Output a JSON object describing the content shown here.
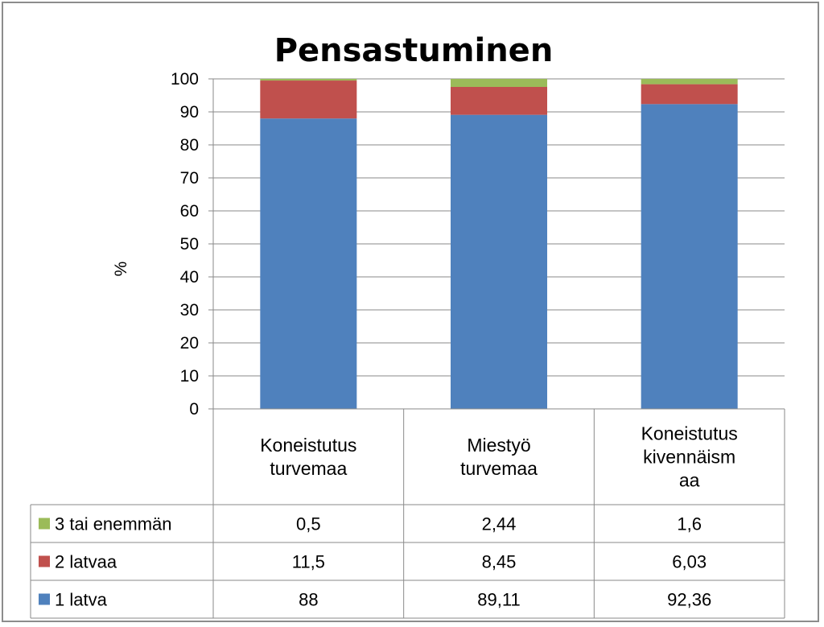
{
  "chart_data": {
    "type": "bar",
    "stacked": true,
    "title": "Pensastuminen",
    "xlabel": "",
    "ylabel": "%",
    "ylim": [
      0,
      100
    ],
    "yticks": [
      "0",
      "10",
      "20",
      "30",
      "40",
      "50",
      "60",
      "70",
      "80",
      "90",
      "100"
    ],
    "grid": true,
    "categories": [
      [
        "Koneistutus",
        "turvemaa"
      ],
      [
        "Miestyö",
        "turvemaa"
      ],
      [
        "Koneistutus",
        "kivennäism",
        "aa"
      ]
    ],
    "series": [
      {
        "name": "1 latva",
        "color": "#4f81bd",
        "values": [
          88,
          89.11,
          92.36
        ],
        "labels": [
          "88",
          "89,11",
          "92,36"
        ]
      },
      {
        "name": "2 latvaa",
        "color": "#c0504d",
        "values": [
          11.5,
          8.45,
          6.03
        ],
        "labels": [
          "11,5",
          "8,45",
          "6,03"
        ]
      },
      {
        "name": "3 tai enemmän",
        "color": "#9bbb59",
        "values": [
          0.5,
          2.44,
          1.6
        ],
        "labels": [
          "0,5",
          "2,44",
          "1,6"
        ]
      }
    ],
    "table_row_order": [
      "3 tai enemmän",
      "2 latvaa",
      "1 latva"
    ]
  }
}
